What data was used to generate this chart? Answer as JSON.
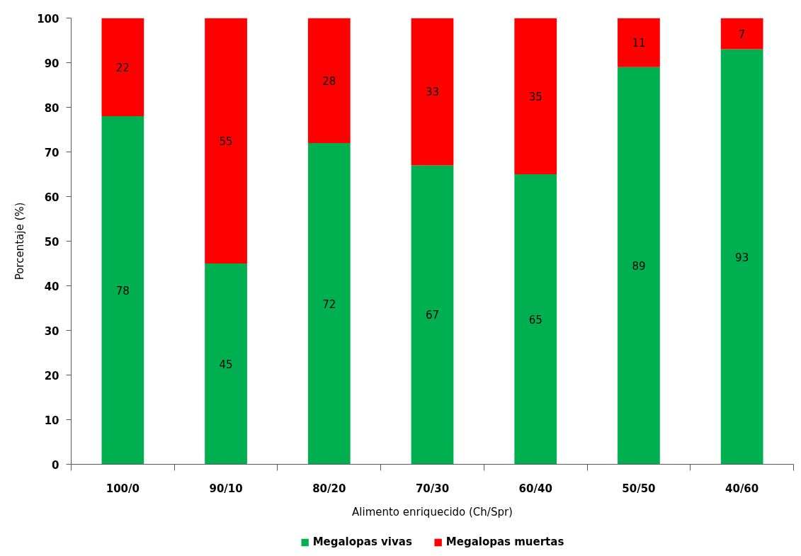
{
  "chart_data": {
    "type": "bar",
    "stacked": true,
    "xlabel": "Alimento enriquecido (Ch/Spr)",
    "ylabel": "Porcentaje (%)",
    "categories": [
      "100/0",
      "90/10",
      "80/20",
      "70/30",
      "60/40",
      "50/50",
      "40/60"
    ],
    "series": [
      {
        "name": "Megalopas vivas",
        "color": "#00b050",
        "values": [
          78,
          45,
          72,
          67,
          65,
          89,
          93
        ]
      },
      {
        "name": "Megalopas muertas",
        "color": "#ff0000",
        "values": [
          22,
          55,
          28,
          33,
          35,
          11,
          7
        ]
      }
    ],
    "ylim": [
      0,
      100
    ],
    "yticks": [
      0,
      10,
      20,
      30,
      40,
      50,
      60,
      70,
      80,
      90,
      100
    ],
    "legend": "bottom",
    "data_labels": true
  }
}
